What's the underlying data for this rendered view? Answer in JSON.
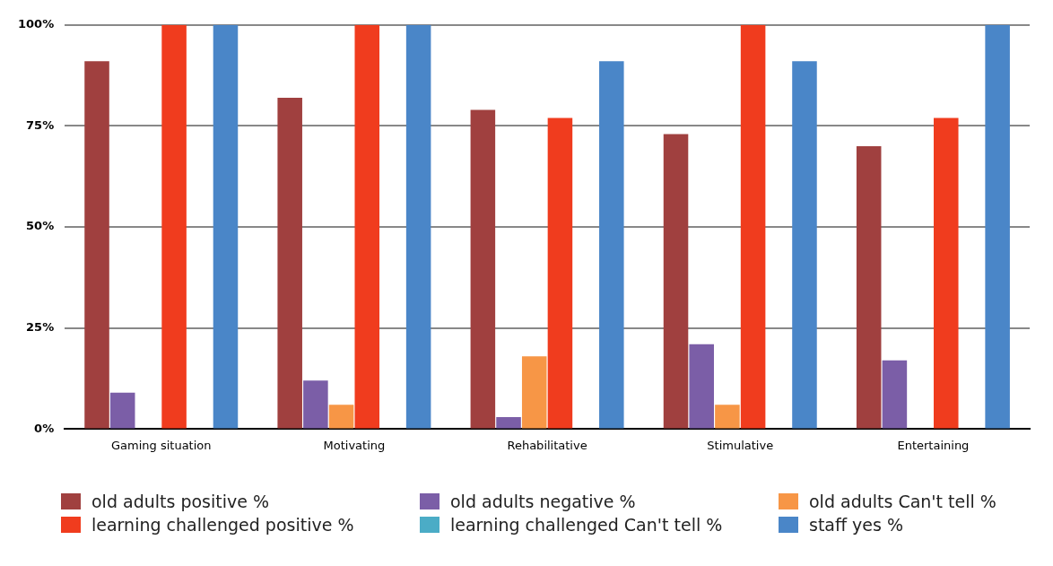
{
  "chart_data": {
    "type": "bar",
    "categories": [
      "Gaming situation",
      "Motivating",
      "Rehabilitative",
      "Stimulative",
      "Entertaining"
    ],
    "series": [
      {
        "name": "old adults positive %",
        "color": "#a0403f",
        "values": [
          91,
          82,
          79,
          73,
          70
        ]
      },
      {
        "name": "old adults negative %",
        "color": "#7b5ea7",
        "values": [
          9,
          12,
          3,
          21,
          17
        ]
      },
      {
        "name": "old adults Can't tell %",
        "color": "#f79646",
        "values": [
          0,
          6,
          18,
          6,
          0
        ]
      },
      {
        "name": "learning challenged positive %",
        "color": "#f03c1e",
        "values": [
          100,
          100,
          77,
          100,
          77
        ]
      },
      {
        "name": "learning challenged Can't tell %",
        "color": "#4bacc6",
        "values": [
          0,
          0,
          0,
          0,
          0
        ]
      },
      {
        "name": "staff yes %",
        "color": "#4a86c8",
        "values": [
          100,
          100,
          91,
          91,
          100
        ]
      }
    ],
    "ylim": [
      0,
      100
    ],
    "yticks": [
      {
        "value": 0,
        "label": "0%"
      },
      {
        "value": 25,
        "label": "25%"
      },
      {
        "value": 50,
        "label": "50%"
      },
      {
        "value": 75,
        "label": "75%"
      },
      {
        "value": 100,
        "label": "100%"
      }
    ],
    "grid": "y",
    "legend": "bottom"
  }
}
